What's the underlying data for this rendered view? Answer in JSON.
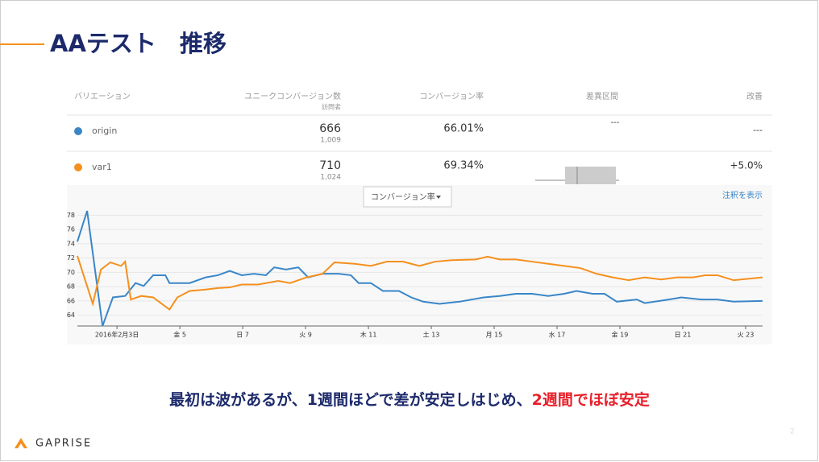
{
  "slide": {
    "title": "AAテスト　推移",
    "caption": "最初は波があるが、1週間ほどで差が安定しはじめ、",
    "caption_highlight": "2週間でほぼ安定",
    "logo": "GAPRISE",
    "page_number": "2"
  },
  "table": {
    "headers": [
      "バリエーション",
      "ユニークコンバージョン数",
      "訪問者",
      "コンバージョン率",
      "差異区間",
      "改善"
    ],
    "rows": [
      [
        "origin",
        "666",
        "1,009",
        "66.01%",
        "---",
        "---"
      ],
      [
        "var1",
        "710",
        "1,024",
        "69.34%",
        "",
        "+5.0%"
      ]
    ],
    "dropdown": "コンバージョン率",
    "link": "注釈を表示"
  },
  "chart_data": {
    "type": "line",
    "xlim": [
      1.74,
      23.54
    ],
    "ylim": [
      62.5,
      78.6
    ],
    "yticks": [
      64,
      66,
      68,
      70,
      72,
      74,
      76,
      78
    ],
    "xticks": [
      {
        "value": 3,
        "label": "2016年2月3日"
      },
      {
        "value": 5,
        "label": "金 5"
      },
      {
        "value": 7,
        "label": "日 7"
      },
      {
        "value": 9,
        "label": "火 9"
      },
      {
        "value": 11,
        "label": "木 11"
      },
      {
        "value": 13,
        "label": "土 13"
      },
      {
        "value": 15,
        "label": "月 15"
      },
      {
        "value": 17,
        "label": "水 17"
      },
      {
        "value": 19,
        "label": "金 19"
      },
      {
        "value": 21,
        "label": "日 21"
      },
      {
        "value": 23,
        "label": "火 23"
      }
    ],
    "series": [
      {
        "name": "origin",
        "color": "#3a86c8",
        "x": [
          1.74,
          2.05,
          2.54,
          2.87,
          3.26,
          3.59,
          3.85,
          4.15,
          4.54,
          4.67,
          5.31,
          5.82,
          6.21,
          6.59,
          6.97,
          7.36,
          7.74,
          8.0,
          8.38,
          8.77,
          9.08,
          9.54,
          10.05,
          10.44,
          10.69,
          11.08,
          11.46,
          11.97,
          12.36,
          12.74,
          13.26,
          13.9,
          14.67,
          15.18,
          15.69,
          16.21,
          16.72,
          17.23,
          17.62,
          18.13,
          18.51,
          18.9,
          19.54,
          19.79,
          20.56,
          20.95,
          21.59,
          22.1,
          22.62,
          23.54
        ],
        "values": [
          74.3,
          78.6,
          62.5,
          66.5,
          66.7,
          68.5,
          68.1,
          69.6,
          69.6,
          68.5,
          68.5,
          69.3,
          69.6,
          70.2,
          69.6,
          69.8,
          69.6,
          70.7,
          70.4,
          70.7,
          69.3,
          69.8,
          69.8,
          69.6,
          68.5,
          68.5,
          67.4,
          67.4,
          66.5,
          65.9,
          65.6,
          65.9,
          66.5,
          66.7,
          67.0,
          67.0,
          66.7,
          67.0,
          67.4,
          67.0,
          67.0,
          65.9,
          66.2,
          65.7,
          66.2,
          66.5,
          66.2,
          66.2,
          65.9,
          66.0
        ]
      },
      {
        "name": "var1",
        "color": "#f5901e",
        "x": [
          1.74,
          2.23,
          2.49,
          2.79,
          3.13,
          3.26,
          3.44,
          3.77,
          4.15,
          4.67,
          4.92,
          5.31,
          5.82,
          6.21,
          6.59,
          6.97,
          7.49,
          8.13,
          8.51,
          9.03,
          9.54,
          9.92,
          10.56,
          11.08,
          11.59,
          12.1,
          12.62,
          13.13,
          13.64,
          14.41,
          14.79,
          15.18,
          15.69,
          16.21,
          16.72,
          17.23,
          17.74,
          18.26,
          18.77,
          19.28,
          19.79,
          20.31,
          20.82,
          21.33,
          21.72,
          22.1,
          22.62,
          23.54
        ],
        "values": [
          72.3,
          65.6,
          70.4,
          71.4,
          70.9,
          71.5,
          66.2,
          66.7,
          66.5,
          64.8,
          66.5,
          67.4,
          67.6,
          67.8,
          67.9,
          68.3,
          68.3,
          68.8,
          68.5,
          69.3,
          69.8,
          71.4,
          71.2,
          70.9,
          71.5,
          71.5,
          70.9,
          71.5,
          71.7,
          71.8,
          72.2,
          71.8,
          71.8,
          71.5,
          71.2,
          70.9,
          70.6,
          69.8,
          69.3,
          68.9,
          69.3,
          69.0,
          69.3,
          69.3,
          69.6,
          69.6,
          68.9,
          69.3
        ]
      }
    ]
  }
}
